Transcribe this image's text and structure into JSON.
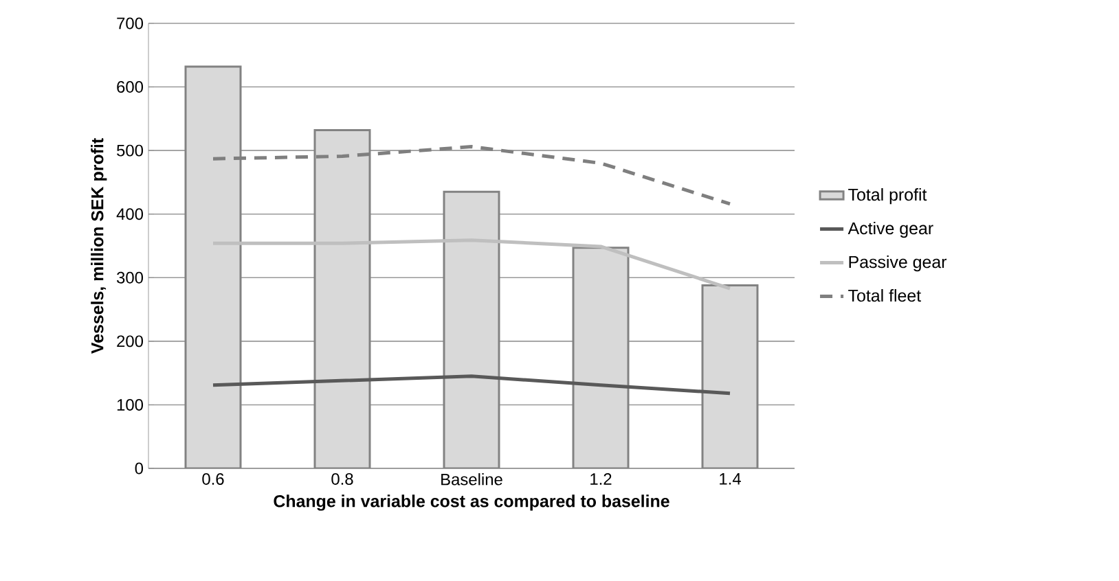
{
  "chart_data": {
    "type": "bar",
    "xlabel": "Change in variable cost as compared to baseline",
    "ylabel": "Vessels, million SEK profit",
    "categories": [
      "0.6",
      "0.8",
      "Baseline",
      "1.2",
      "1.4"
    ],
    "series": [
      {
        "name": "Total profit",
        "color": "#d9d9d9",
        "values": [
          632,
          532,
          435,
          347,
          288
        ]
      },
      {
        "name": "Active gear",
        "type": "line",
        "color": "#595959",
        "values": [
          131,
          138,
          145,
          131,
          118
        ]
      },
      {
        "name": "Passive gear",
        "type": "line",
        "color": "#bfbfbf",
        "values": [
          354,
          354,
          359,
          349,
          283
        ]
      },
      {
        "name": "Total fleet",
        "type": "line",
        "color": "#7f7f7f",
        "line_style": "dashed",
        "values": [
          487,
          491,
          506,
          480,
          416
        ]
      }
    ],
    "ylim": [
      0,
      700
    ],
    "yticks": [
      0,
      100,
      200,
      300,
      400,
      500,
      600,
      700
    ],
    "grid": "y",
    "legend": "right"
  }
}
